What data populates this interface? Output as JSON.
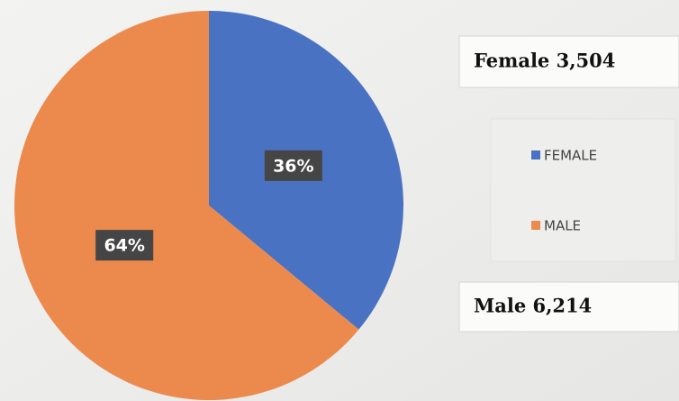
{
  "chart_data": {
    "type": "pie",
    "categories": [
      "FEMALE",
      "MALE"
    ],
    "values": [
      36,
      64
    ],
    "value_labels": [
      "36%",
      "64%"
    ],
    "colors": [
      "#4a72c2",
      "#ec8a4d"
    ],
    "legend": "right",
    "annotations": [
      "Female 3,504",
      "Male 6,214"
    ]
  }
}
